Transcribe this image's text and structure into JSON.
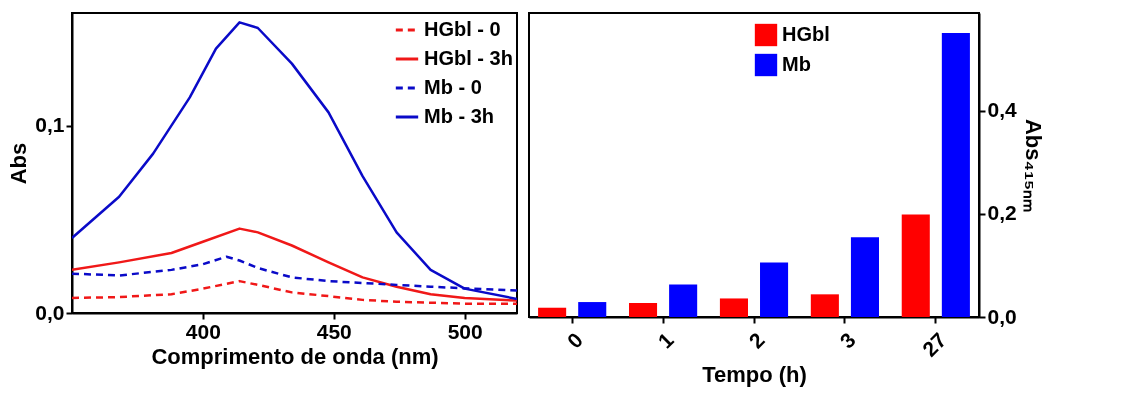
{
  "chart_data": [
    {
      "type": "line",
      "xlabel": "Comprimento de onda (nm)",
      "ylabel": "Abs",
      "xlim": [
        350,
        520
      ],
      "xticks": [
        400,
        450,
        500
      ],
      "ylim": [
        0,
        0.16
      ],
      "yticks": [
        {
          "value": 0,
          "label": "0,0"
        },
        {
          "value": 0.1,
          "label": "0,1"
        }
      ],
      "legend": "top right",
      "grid": false,
      "series": [
        {
          "name": "HGbl - 0",
          "color": "#f01818",
          "line_style": "dashed",
          "x": [
            350,
            368,
            388,
            400,
            414,
            421,
            434,
            448,
            461,
            474,
            500,
            520
          ],
          "values": [
            0.008,
            0.0085,
            0.01,
            0.013,
            0.017,
            0.015,
            0.011,
            0.009,
            0.007,
            0.006,
            0.005,
            0.005
          ]
        },
        {
          "name": "HGbl - 3h",
          "color": "#f01818",
          "line_style": "solid",
          "x": [
            350,
            368,
            388,
            400,
            414,
            421,
            434,
            448,
            461,
            474,
            487,
            500,
            520
          ],
          "values": [
            0.023,
            0.027,
            0.032,
            0.038,
            0.045,
            0.043,
            0.036,
            0.027,
            0.019,
            0.014,
            0.01,
            0.008,
            0.0066
          ]
        },
        {
          "name": "Mb - 0",
          "color": "#0a0ac8",
          "line_style": "dashed",
          "x": [
            350,
            368,
            388,
            400,
            409,
            414,
            421,
            434,
            448,
            461,
            474,
            487,
            520
          ],
          "values": [
            0.021,
            0.02,
            0.023,
            0.026,
            0.03,
            0.028,
            0.024,
            0.019,
            0.017,
            0.016,
            0.015,
            0.014,
            0.012
          ]
        },
        {
          "name": "Mb - 3h",
          "color": "#0a0ac8",
          "line_style": "solid",
          "x": [
            350,
            368,
            381,
            395,
            405,
            414,
            421,
            434,
            448,
            461,
            474,
            487,
            500,
            520
          ],
          "values": [
            0.04,
            0.062,
            0.085,
            0.115,
            0.141,
            0.155,
            0.152,
            0.133,
            0.107,
            0.073,
            0.043,
            0.023,
            0.013,
            0.0075
          ]
        }
      ]
    },
    {
      "type": "bar",
      "xlabel": "Tempo (h)",
      "y2label": "Abs₄₁₅ₙₘ",
      "categories": [
        "0",
        "1",
        "2",
        "3",
        "27"
      ],
      "y2lim": [
        0,
        0.59
      ],
      "y2ticks": [
        {
          "value": 0,
          "label": "0,0"
        },
        {
          "value": 0.2,
          "label": "0,2"
        },
        {
          "value": 0.4,
          "label": "0,4"
        }
      ],
      "legend": "top",
      "grid": false,
      "series": [
        {
          "name": "HGbl",
          "color": "#ff0000",
          "axis": "y2",
          "values": [
            0.018,
            0.027,
            0.036,
            0.044,
            0.199
          ]
        },
        {
          "name": "Mb",
          "color": "#0000ff",
          "axis": "y2",
          "values": [
            0.029,
            0.063,
            0.106,
            0.155,
            0.551
          ]
        }
      ]
    }
  ]
}
